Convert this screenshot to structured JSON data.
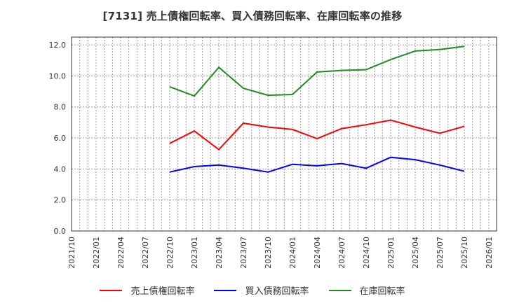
{
  "title": "[7131]  売上債権回転率、買入債務回転率、在庫回転率の推移",
  "chart_data": {
    "type": "line",
    "title": "[7131]  売上債権回転率、買入債務回転率、在庫回転率の推移",
    "xlabel": "",
    "ylabel": "",
    "ylim": [
      0,
      12.5
    ],
    "yticks": [
      0.0,
      2.0,
      4.0,
      6.0,
      8.0,
      10.0,
      12.0
    ],
    "ytick_labels": [
      "0.0",
      "2.0",
      "4.0",
      "6.0",
      "8.0",
      "10.0",
      "12.0"
    ],
    "xtick_labels": [
      "2021/10",
      "2022/01",
      "2022/04",
      "2022/07",
      "2022/10",
      "2023/01",
      "2023/04",
      "2023/07",
      "2023/10",
      "2024/01",
      "2024/04",
      "2024/07",
      "2024/10",
      "2025/01",
      "2025/04",
      "2025/07",
      "2025/10",
      "2026/01"
    ],
    "grid": true,
    "legend_position": "bottom",
    "x": [
      "2022/10",
      "2023/01",
      "2023/04",
      "2023/07",
      "2023/10",
      "2024/01",
      "2024/04",
      "2024/07",
      "2024/10",
      "2025/01",
      "2025/04",
      "2025/07",
      "2025/10"
    ],
    "series": [
      {
        "name": "売上債権回転率",
        "color": "#ff0000",
        "values": [
          5.65,
          6.45,
          5.25,
          6.95,
          6.7,
          6.55,
          5.95,
          6.6,
          6.85,
          7.15,
          6.7,
          6.3,
          6.75
        ]
      },
      {
        "name": "買入債務回転率",
        "color": "#0000ff",
        "values": [
          3.8,
          4.15,
          4.25,
          4.05,
          3.8,
          4.3,
          4.2,
          4.35,
          4.05,
          4.75,
          4.6,
          4.25,
          3.85
        ]
      },
      {
        "name": "在庫回転率",
        "color": "#228b22",
        "values": [
          9.3,
          8.7,
          10.55,
          9.2,
          8.75,
          8.8,
          10.25,
          10.35,
          10.4,
          11.05,
          11.6,
          11.7,
          11.9
        ]
      }
    ]
  },
  "legend": {
    "items": [
      {
        "label": "売上債権回転率",
        "color": "#ff0000"
      },
      {
        "label": "買入債務回転率",
        "color": "#0000ff"
      },
      {
        "label": "在庫回転率",
        "color": "#228b22"
      }
    ]
  }
}
